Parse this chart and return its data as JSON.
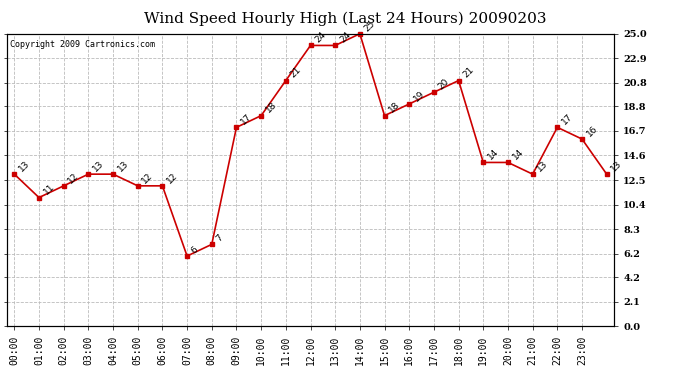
{
  "title": "Wind Speed Hourly High (Last 24 Hours) 20090203",
  "copyright": "Copyright 2009 Cartronics.com",
  "hours": [
    "00:00",
    "01:00",
    "02:00",
    "03:00",
    "04:00",
    "05:00",
    "06:00",
    "07:00",
    "08:00",
    "09:00",
    "10:00",
    "11:00",
    "12:00",
    "13:00",
    "14:00",
    "15:00",
    "16:00",
    "17:00",
    "18:00",
    "19:00",
    "20:00",
    "21:00",
    "22:00",
    "23:00"
  ],
  "values": [
    13,
    11,
    12,
    13,
    13,
    12,
    12,
    6,
    7,
    17,
    18,
    21,
    24,
    24,
    25,
    18,
    19,
    20,
    21,
    14,
    14,
    13,
    17,
    16,
    13
  ],
  "yticks": [
    0.0,
    2.1,
    4.2,
    6.2,
    8.3,
    10.4,
    12.5,
    14.6,
    16.7,
    18.8,
    20.8,
    22.9,
    25.0
  ],
  "line_color": "#cc0000",
  "marker_color": "#cc0000",
  "bg_color": "#ffffff",
  "grid_color": "#bbbbbb",
  "title_fontsize": 11,
  "label_fontsize": 7,
  "annotation_fontsize": 6.5,
  "ymin": 0.0,
  "ymax": 25.0
}
